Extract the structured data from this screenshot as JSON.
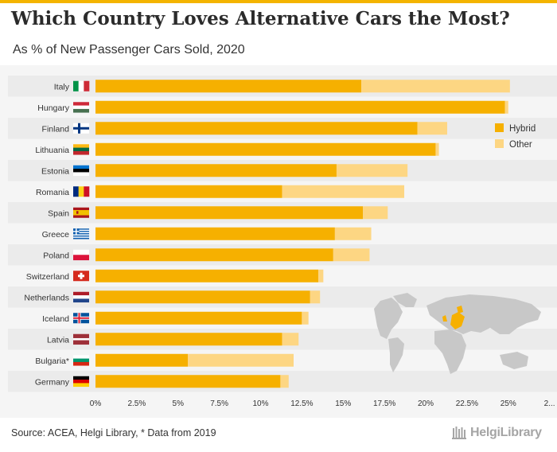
{
  "header": {
    "title": "Which Country Loves Alternative Cars the Most?",
    "subtitle": "As % of New Passenger Cars Sold, 2020"
  },
  "footer": {
    "source": "Source: ACEA, Helgi Library, * Data from 2019",
    "logo_text": "HelgiLibrary"
  },
  "colors": {
    "hybrid": "#f6b000",
    "other": "#fdd683",
    "row_band": "#ebebeb",
    "background": "#f5f5f5",
    "map": "#c8c8c8",
    "map_highlight": "#f6b000"
  },
  "chart_data": {
    "type": "bar",
    "orientation": "horizontal",
    "stacked": true,
    "categories": [
      "Italy",
      "Hungary",
      "Finland",
      "Lithuania",
      "Estonia",
      "Romania",
      "Spain",
      "Greece",
      "Poland",
      "Switzerland",
      "Netherlands",
      "Iceland",
      "Latvia",
      "Bulgaria*",
      "Germany"
    ],
    "series": [
      {
        "name": "Hybrid",
        "values": [
          16.1,
          24.8,
          19.5,
          20.6,
          14.6,
          11.3,
          16.2,
          14.5,
          14.4,
          13.5,
          13.0,
          12.5,
          11.3,
          5.6,
          11.2
        ]
      },
      {
        "name": "Other",
        "values": [
          9.0,
          0.2,
          1.8,
          0.2,
          4.3,
          7.4,
          1.5,
          2.2,
          2.2,
          0.3,
          0.6,
          0.4,
          1.0,
          6.4,
          0.5
        ]
      }
    ],
    "x_ticks": [
      "0%",
      "2.5%",
      "5%",
      "7.5%",
      "10%",
      "12.5%",
      "15%",
      "17.5%",
      "20%",
      "22.5%",
      "25%",
      "2..."
    ],
    "xlim": [
      0,
      27.5
    ],
    "legend": {
      "position": "right",
      "entries": [
        "Hybrid",
        "Other"
      ]
    },
    "flags": [
      "italy-flag",
      "hungary-flag",
      "finland-flag",
      "lithuania-flag",
      "estonia-flag",
      "romania-flag",
      "spain-flag",
      "greece-flag",
      "poland-flag",
      "switzerland-flag",
      "netherlands-flag",
      "iceland-flag",
      "latvia-flag",
      "bulgaria-flag",
      "germany-flag"
    ]
  }
}
